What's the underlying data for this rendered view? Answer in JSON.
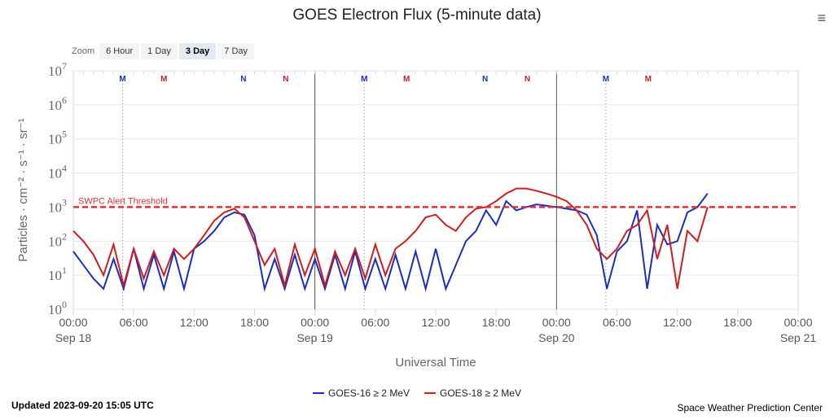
{
  "chart_data": {
    "type": "line",
    "title": "GOES Electron Flux (5-minute data)",
    "xlabel": "Universal Time",
    "ylabel": "Particles · cm⁻² · s⁻¹ · sr⁻¹",
    "yscale": "log",
    "ylim": [
      1,
      10000000
    ],
    "xlim_hours": [
      0,
      72
    ],
    "y_ticks": [
      {
        "base": "10",
        "exp": "0"
      },
      {
        "base": "10",
        "exp": "1"
      },
      {
        "base": "10",
        "exp": "2"
      },
      {
        "base": "10",
        "exp": "3"
      },
      {
        "base": "10",
        "exp": "4"
      },
      {
        "base": "10",
        "exp": "5"
      },
      {
        "base": "10",
        "exp": "6"
      },
      {
        "base": "10",
        "exp": "7"
      }
    ],
    "x_ticks": [
      {
        "h": 0,
        "t": "00:00",
        "d": "Sep 18"
      },
      {
        "h": 6,
        "t": "06:00"
      },
      {
        "h": 12,
        "t": "12:00"
      },
      {
        "h": 18,
        "t": "18:00"
      },
      {
        "h": 24,
        "t": "00:00",
        "d": "Sep 19"
      },
      {
        "h": 30,
        "t": "06:00"
      },
      {
        "h": 36,
        "t": "12:00"
      },
      {
        "h": 42,
        "t": "18:00"
      },
      {
        "h": 48,
        "t": "00:00",
        "d": "Sep 20"
      },
      {
        "h": 54,
        "t": "06:00"
      },
      {
        "h": 60,
        "t": "12:00"
      },
      {
        "h": 66,
        "t": "18:00"
      },
      {
        "h": 72,
        "t": "00:00",
        "d": "Sep 21"
      }
    ],
    "threshold": {
      "value": 1000,
      "label": "SWPC Alert Threshold",
      "color": "#d33"
    },
    "markers": [
      {
        "h": 4.9,
        "label": "M",
        "color": "#1133bb",
        "line": true
      },
      {
        "h": 9,
        "label": "M",
        "color": "#cc2222"
      },
      {
        "h": 16.9,
        "label": "N",
        "color": "#1133bb"
      },
      {
        "h": 21.1,
        "label": "N",
        "color": "#cc2222"
      },
      {
        "h": 28.9,
        "label": "M",
        "color": "#1133bb",
        "line": true
      },
      {
        "h": 33.1,
        "label": "M",
        "color": "#cc2222"
      },
      {
        "h": 40.9,
        "label": "N",
        "color": "#1133bb"
      },
      {
        "h": 45.1,
        "label": "N",
        "color": "#cc2222"
      },
      {
        "h": 52.9,
        "label": "M",
        "color": "#1133bb",
        "line": true
      },
      {
        "h": 57.1,
        "label": "M",
        "color": "#cc2222"
      }
    ],
    "series": [
      {
        "name": "GOES-16 ≥ 2 MeV",
        "color": "#1a2fc0",
        "values": [
          50,
          20,
          8,
          4,
          30,
          4,
          60,
          4,
          40,
          4,
          50,
          4,
          60,
          100,
          200,
          500,
          700,
          600,
          150,
          4,
          30,
          4,
          40,
          4,
          30,
          4,
          40,
          4,
          50,
          4,
          30,
          4,
          40,
          4,
          50,
          4,
          60,
          4,
          20,
          100,
          200,
          800,
          300,
          1500,
          800,
          1000,
          1200,
          1100,
          1000,
          900,
          800,
          600,
          150,
          4,
          50,
          100,
          800,
          4,
          300,
          80,
          100,
          700,
          1000,
          2500
        ]
      },
      {
        "name": "GOES-18 ≥ 2 MeV",
        "color": "#d01c1c",
        "values": [
          200,
          100,
          40,
          10,
          80,
          5,
          60,
          8,
          50,
          10,
          60,
          30,
          60,
          150,
          400,
          700,
          900,
          500,
          100,
          20,
          60,
          5,
          80,
          10,
          60,
          5,
          50,
          10,
          60,
          8,
          80,
          10,
          60,
          100,
          200,
          500,
          600,
          300,
          200,
          500,
          900,
          1000,
          1500,
          2500,
          3500,
          3500,
          3000,
          2500,
          2000,
          1500,
          800,
          300,
          60,
          30,
          60,
          200,
          300,
          800,
          30,
          300,
          4,
          200,
          100,
          1000
        ]
      }
    ]
  },
  "ui": {
    "zoom_label": "Zoom",
    "zoom_options": [
      "6 Hour",
      "1 Day",
      "3 Day",
      "7 Day"
    ],
    "menu_icon": "hamburger-icon"
  },
  "footer": {
    "updated": "Updated 2023-09-20 15:05 UTC",
    "credit": "Space Weather Prediction Center"
  }
}
